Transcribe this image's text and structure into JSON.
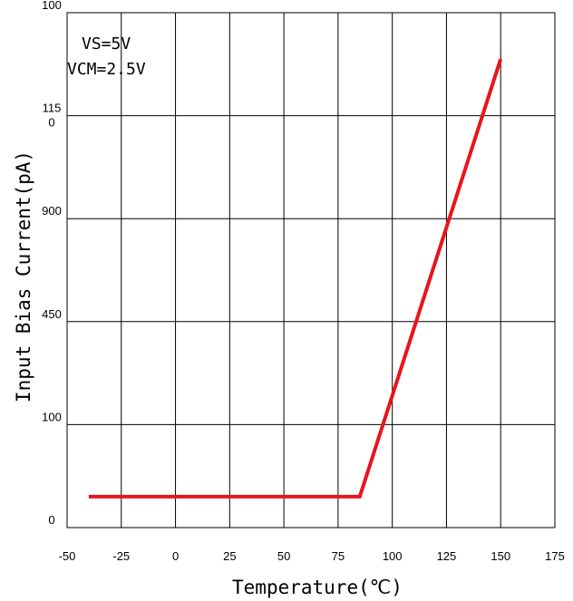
{
  "chart_data": {
    "type": "line",
    "xlabel": "Temperature(℃)",
    "ylabel": "Input Bias Current(pA)",
    "x_ticks": [
      "-50",
      "-25",
      "0",
      "25",
      "50",
      "75",
      "100",
      "125",
      "150",
      "175"
    ],
    "y_ticks": [
      "0",
      "100",
      "450",
      "900",
      "115\n0",
      "100"
    ],
    "xlim": [
      -50,
      175
    ],
    "grid": true,
    "annotations": [
      "VS=5V",
      "VCM=2.5V"
    ],
    "series": [
      {
        "x": [
          -40,
          85,
          150
        ],
        "y_grid_units": [
          0.3,
          0.3,
          4.55
        ],
        "color": "#e8141c"
      }
    ]
  }
}
